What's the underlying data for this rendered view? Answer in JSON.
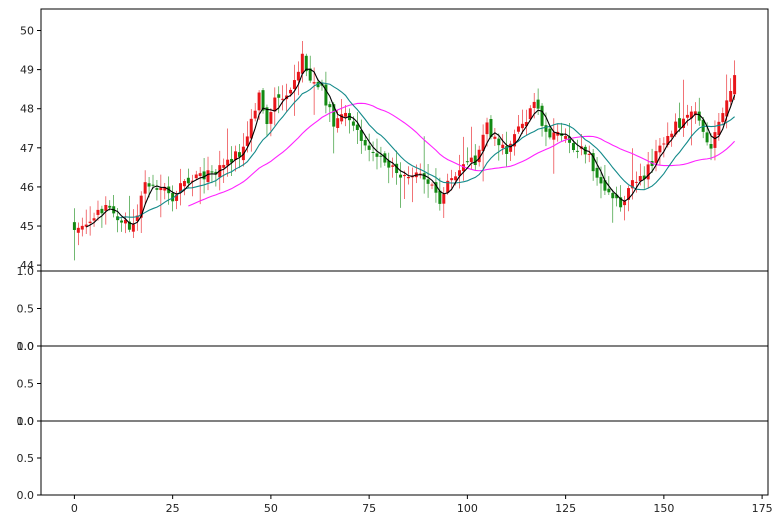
{
  "chart_data": {
    "type": "candlestick",
    "grid": false,
    "legend": "none",
    "colors": {
      "up": "#e8161b",
      "down": "#138a13",
      "ma_short": "#000000",
      "ma_mid": "#138a8a",
      "ma_long": "#ff22ff"
    },
    "panels": [
      {
        "name": "price",
        "ylim": [
          43.85,
          50.55
        ],
        "yticks": [
          44,
          45,
          46,
          47,
          48,
          49,
          50
        ],
        "ytick_labels": [
          "44",
          "45",
          "46",
          "47",
          "48",
          "49",
          "50"
        ],
        "series": [
          {
            "key": "candles",
            "type": "candlestick"
          },
          {
            "key": "ma_short",
            "type": "line",
            "x_start": 3
          },
          {
            "key": "ma_mid",
            "type": "line",
            "x_start": 11
          },
          {
            "key": "ma_long",
            "type": "line",
            "x_start": 29
          }
        ]
      },
      {
        "name": "panel-2",
        "ylim": [
          0,
          1
        ],
        "yticks": [
          0,
          0.5,
          1
        ],
        "ytick_labels": [
          "0.0",
          "0.5",
          "1.0"
        ]
      },
      {
        "name": "panel-3",
        "ylim": [
          0,
          1
        ],
        "yticks": [
          0,
          0.5,
          1
        ],
        "ytick_labels": [
          "0.0",
          "0.5",
          "1.0"
        ]
      },
      {
        "name": "panel-4",
        "ylim": [
          0,
          1
        ],
        "yticks": [
          0,
          0.5,
          1
        ],
        "ytick_labels": [
          "0.0",
          "0.5",
          "1.0"
        ]
      }
    ],
    "xlim": [
      -8.5,
      176.5
    ],
    "xticks": [
      0,
      25,
      50,
      75,
      100,
      125,
      150,
      175
    ],
    "xtick_labels": [
      "0",
      "25",
      "50",
      "75",
      "100",
      "125",
      "150",
      "175"
    ],
    "x_count": 169,
    "close_anchors": [
      [
        0,
        44.9
      ],
      [
        4,
        45.25
      ],
      [
        8,
        45.45
      ],
      [
        12,
        45.2
      ],
      [
        15,
        44.95
      ],
      [
        18,
        46.2
      ],
      [
        22,
        45.95
      ],
      [
        25,
        45.75
      ],
      [
        28,
        46.15
      ],
      [
        33,
        46.3
      ],
      [
        38,
        46.55
      ],
      [
        42,
        46.85
      ],
      [
        45,
        47.7
      ],
      [
        47,
        48.3
      ],
      [
        49,
        47.5
      ],
      [
        51,
        48.4
      ],
      [
        54,
        48.35
      ],
      [
        58,
        49.3
      ],
      [
        60,
        48.7
      ],
      [
        63,
        48.5
      ],
      [
        66,
        47.65
      ],
      [
        70,
        47.8
      ],
      [
        74,
        47.15
      ],
      [
        78,
        46.8
      ],
      [
        82,
        46.35
      ],
      [
        86,
        46.35
      ],
      [
        90,
        46.1
      ],
      [
        93,
        45.7
      ],
      [
        96,
        46.3
      ],
      [
        99,
        46.55
      ],
      [
        102,
        46.7
      ],
      [
        105,
        47.55
      ],
      [
        107,
        47.25
      ],
      [
        110,
        46.8
      ],
      [
        113,
        47.45
      ],
      [
        117,
        48.15
      ],
      [
        120,
        47.4
      ],
      [
        123,
        47.4
      ],
      [
        127,
        47.05
      ],
      [
        131,
        46.75
      ],
      [
        134,
        46.05
      ],
      [
        137,
        45.65
      ],
      [
        139,
        45.55
      ],
      [
        142,
        46.05
      ],
      [
        145,
        46.25
      ],
      [
        148,
        46.85
      ],
      [
        151,
        47.4
      ],
      [
        155,
        47.7
      ],
      [
        158,
        47.85
      ],
      [
        160,
        47.3
      ],
      [
        162,
        46.95
      ],
      [
        164,
        47.75
      ],
      [
        166,
        48.1
      ],
      [
        168,
        48.85
      ]
    ]
  }
}
